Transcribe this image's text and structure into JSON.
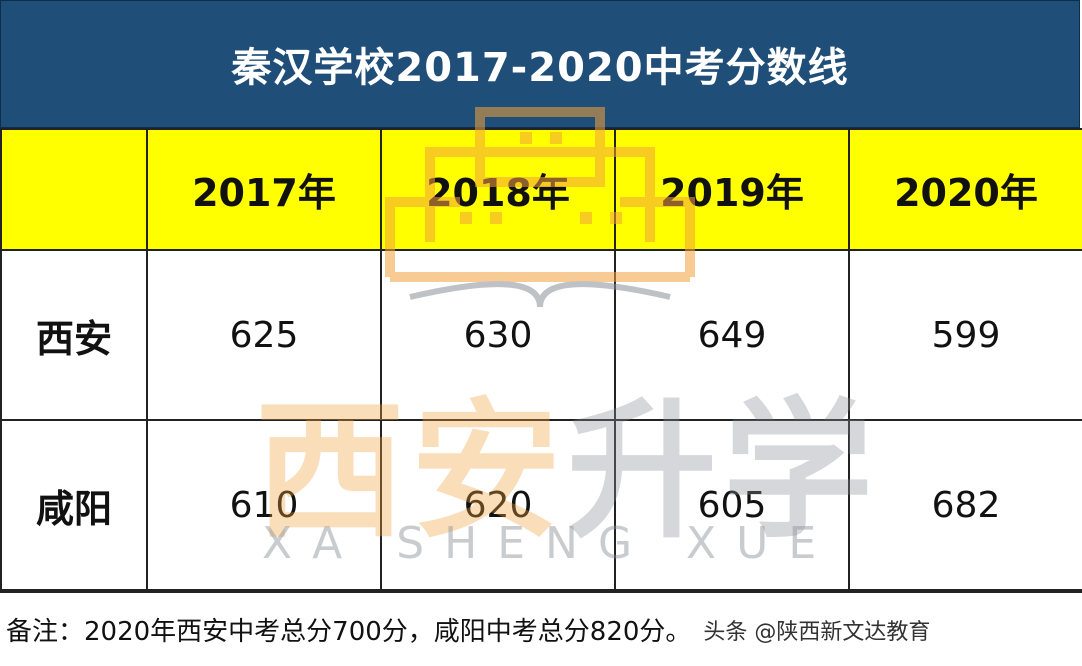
{
  "title": "秦汉学校2017-2020中考分数线",
  "table": {
    "header": [
      "",
      "2017年",
      "2018年",
      "2019年",
      "2020年"
    ],
    "rows": [
      {
        "label": "西安",
        "values": [
          "625",
          "630",
          "649",
          "599"
        ]
      },
      {
        "label": "咸阳",
        "values": [
          "610",
          "620",
          "605",
          "682"
        ]
      }
    ]
  },
  "note": "备注：2020年西安中考总分700分，咸阳中考总分820分。",
  "credit": "头条 @陕西新文达教育",
  "watermark": {
    "chars": [
      "西",
      "安",
      "升",
      "学"
    ],
    "latin": "XA SHENG XUE"
  },
  "colors": {
    "title_bg": "#1f4e79",
    "header_bg": "#ffff00",
    "watermark_orange": "#f2a23b",
    "watermark_gray": "#8a8f96"
  }
}
